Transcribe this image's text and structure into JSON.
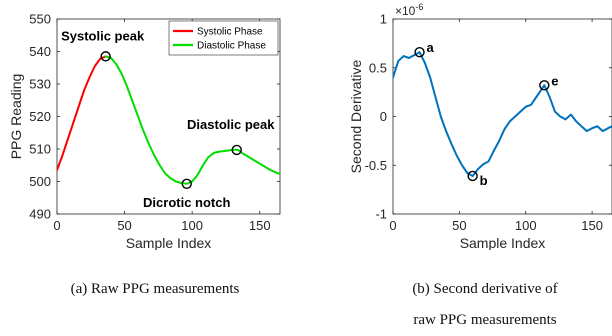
{
  "colors": {
    "systolic": "#ff0000",
    "diastolic": "#00dd00",
    "derivative": "#0072bd",
    "axis": "#262626",
    "grid": "#ffffff"
  },
  "captions": {
    "left": "(a) Raw PPG measurements",
    "right_line1": "(b) Second derivative of",
    "right_line2": "raw PPG measurements"
  },
  "chart_data": [
    {
      "type": "line",
      "title": "",
      "xlabel": "Sample Index",
      "ylabel": "PPG Reading",
      "xlim": [
        0,
        165
      ],
      "ylim": [
        490,
        550
      ],
      "xticks": [
        0,
        50,
        100,
        150
      ],
      "yticks": [
        490,
        500,
        510,
        520,
        530,
        540,
        550
      ],
      "legend_position": "top-right",
      "series": [
        {
          "name": "Systolic Phase",
          "color_key": "systolic",
          "x": [
            0,
            4,
            8,
            12,
            16,
            20,
            24,
            28,
            32,
            36
          ],
          "y": [
            503.5,
            508,
            513,
            518,
            523,
            528,
            532,
            535.5,
            537.8,
            538.5
          ]
        },
        {
          "name": "Diastolic Phase",
          "color_key": "diastolic",
          "x": [
            36,
            40,
            44,
            48,
            52,
            56,
            60,
            64,
            68,
            72,
            76,
            80,
            84,
            88,
            92,
            96,
            100,
            104,
            108,
            112,
            116,
            120,
            124,
            128,
            132,
            134,
            138,
            142,
            146,
            150,
            154,
            158,
            162,
            165
          ],
          "y": [
            538.5,
            538,
            536,
            533,
            529,
            524.5,
            520,
            515.5,
            511.5,
            508,
            505,
            502.5,
            501,
            500,
            499.5,
            499.3,
            500,
            502,
            505,
            507.5,
            508.8,
            509.2,
            509.4,
            509.6,
            509.8,
            509.7,
            508.5,
            507.5,
            506.5,
            505.5,
            504.5,
            503.5,
            502.8,
            502.3
          ]
        }
      ],
      "annotations": [
        {
          "label": "Systolic peak",
          "x": 36,
          "y": 538.5
        },
        {
          "label": "Dicrotic notch",
          "x": 96,
          "y": 499.3
        },
        {
          "label": "Diastolic peak",
          "x": 133,
          "y": 509.7
        }
      ]
    },
    {
      "type": "line",
      "title": "",
      "xlabel": "Sample Index",
      "ylabel": "Second Derivative",
      "exponent_label": "×10",
      "exponent_power": "-6",
      "xlim": [
        0,
        165
      ],
      "ylim": [
        -1,
        1
      ],
      "xticks": [
        0,
        50,
        100,
        150
      ],
      "yticks": [
        -1,
        -0.5,
        0,
        0.5,
        1
      ],
      "series": [
        {
          "name": "",
          "color_key": "derivative",
          "x": [
            0,
            4,
            8,
            12,
            16,
            20,
            24,
            28,
            32,
            36,
            40,
            44,
            48,
            52,
            56,
            60,
            64,
            68,
            72,
            76,
            80,
            84,
            88,
            92,
            96,
            100,
            104,
            108,
            112,
            114,
            118,
            122,
            126,
            130,
            134,
            138,
            142,
            146,
            150,
            154,
            158,
            162,
            165
          ],
          "y": [
            0.4,
            0.57,
            0.62,
            0.6,
            0.63,
            0.66,
            0.55,
            0.4,
            0.2,
            0.0,
            -0.15,
            -0.28,
            -0.4,
            -0.5,
            -0.58,
            -0.61,
            -0.54,
            -0.49,
            -0.46,
            -0.35,
            -0.25,
            -0.13,
            -0.05,
            0.0,
            0.05,
            0.1,
            0.12,
            0.2,
            0.28,
            0.32,
            0.2,
            0.05,
            0.0,
            -0.03,
            0.02,
            -0.05,
            -0.1,
            -0.15,
            -0.12,
            -0.1,
            -0.15,
            -0.12,
            -0.1
          ]
        }
      ],
      "annotations": [
        {
          "label": "a",
          "x": 20,
          "y": 0.66
        },
        {
          "label": "b",
          "x": 60,
          "y": -0.61
        },
        {
          "label": "e",
          "x": 114,
          "y": 0.32
        }
      ]
    }
  ]
}
